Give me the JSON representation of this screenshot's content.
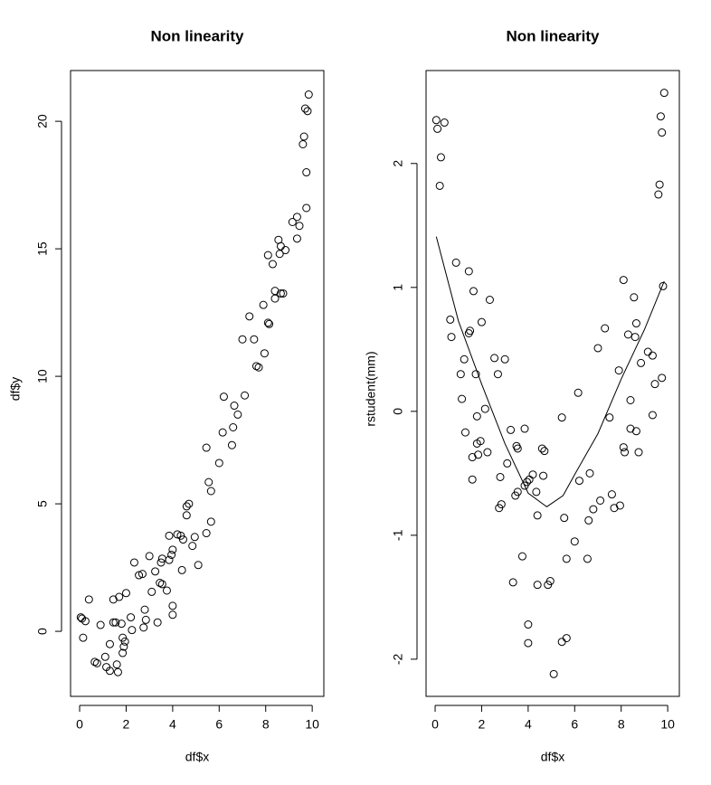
{
  "chart_data": [
    {
      "type": "scatter",
      "title": "Non linearity",
      "x_label": "df$x",
      "y_label": "df$y",
      "xlim": [
        -0.39,
        10.5
      ],
      "ylim": [
        -2.55,
        21.99
      ],
      "xticks": [
        0,
        2,
        4,
        6,
        8,
        10
      ],
      "yticks": [
        0,
        5,
        10,
        15,
        20
      ],
      "x": [
        0.05,
        0.1,
        0.15,
        0.25,
        0.4,
        0.65,
        0.75,
        0.9,
        1.1,
        1.15,
        1.3,
        1.3,
        1.45,
        1.45,
        1.55,
        1.6,
        1.65,
        1.7,
        1.8,
        1.85,
        1.85,
        1.9,
        1.95,
        2.0,
        2.2,
        2.25,
        2.35,
        2.55,
        2.7,
        2.75,
        2.8,
        2.85,
        3.0,
        3.1,
        3.25,
        3.35,
        3.45,
        3.5,
        3.55,
        3.55,
        3.75,
        3.85,
        3.85,
        3.95,
        4.0,
        4.0,
        4.0,
        4.2,
        4.35,
        4.4,
        4.45,
        4.6,
        4.6,
        4.7,
        4.85,
        4.95,
        5.1,
        5.45,
        5.45,
        5.55,
        5.65,
        5.65,
        6.0,
        6.15,
        6.2,
        6.55,
        6.6,
        6.65,
        6.8,
        7.0,
        7.1,
        7.3,
        7.5,
        7.6,
        7.7,
        7.9,
        7.95,
        8.1,
        8.15,
        8.1,
        8.3,
        8.4,
        8.4,
        8.55,
        8.6,
        8.65,
        8.65,
        8.75,
        8.85,
        9.15,
        9.35,
        9.35,
        9.45,
        9.6,
        9.65,
        9.7,
        9.75,
        9.75,
        9.8,
        9.85
      ],
      "values": [
        0.55,
        0.5,
        -0.25,
        0.4,
        1.25,
        -1.2,
        -1.25,
        0.25,
        -1.0,
        -1.4,
        -0.5,
        -1.55,
        0.35,
        1.25,
        0.35,
        -1.3,
        -1.6,
        1.35,
        0.3,
        -0.25,
        -0.85,
        -0.6,
        -0.4,
        1.5,
        0.55,
        0.05,
        2.7,
        2.2,
        2.25,
        0.15,
        0.85,
        0.45,
        2.95,
        1.55,
        2.35,
        0.35,
        1.9,
        2.7,
        2.85,
        1.85,
        1.6,
        2.8,
        3.75,
        3.0,
        3.2,
        0.65,
        1.0,
        3.8,
        3.75,
        2.4,
        3.6,
        4.55,
        4.9,
        5.0,
        3.35,
        3.7,
        2.6,
        3.85,
        7.2,
        5.85,
        5.5,
        4.3,
        6.6,
        7.8,
        9.2,
        7.3,
        8.0,
        8.85,
        8.5,
        11.45,
        9.25,
        12.35,
        11.45,
        10.4,
        10.35,
        12.8,
        10.9,
        12.1,
        12.05,
        14.75,
        14.4,
        13.35,
        13.05,
        15.35,
        14.8,
        15.1,
        13.25,
        13.25,
        14.95,
        16.05,
        16.25,
        15.4,
        15.9,
        19.1,
        19.4,
        20.5,
        18.0,
        16.6,
        20.4,
        21.05
      ]
    },
    {
      "type": "scatter",
      "title": "Non linearity",
      "x_label": "df$x",
      "y_label": "rstudent(mm)",
      "xlim": [
        -0.39,
        10.5
      ],
      "ylim": [
        -2.3,
        2.75
      ],
      "xticks": [
        0,
        2,
        4,
        6,
        8,
        10
      ],
      "yticks": [
        -2,
        -1,
        0,
        1,
        2
      ],
      "x": [
        0.05,
        0.1,
        0.2,
        0.25,
        0.4,
        0.65,
        0.7,
        0.9,
        1.1,
        1.15,
        1.25,
        1.3,
        1.45,
        1.45,
        1.5,
        1.6,
        1.6,
        1.65,
        1.75,
        1.8,
        1.8,
        1.85,
        1.95,
        2.0,
        2.15,
        2.25,
        2.35,
        2.55,
        2.7,
        2.75,
        2.8,
        2.85,
        3.0,
        3.1,
        3.25,
        3.35,
        3.45,
        3.5,
        3.55,
        3.55,
        3.75,
        3.85,
        3.85,
        3.95,
        4.0,
        4.0,
        4.05,
        4.2,
        4.35,
        4.4,
        4.4,
        4.6,
        4.65,
        4.7,
        4.85,
        4.95,
        5.1,
        5.45,
        5.45,
        5.55,
        5.65,
        5.65,
        6.0,
        6.15,
        6.2,
        6.55,
        6.6,
        6.65,
        6.8,
        7.0,
        7.1,
        7.3,
        7.5,
        7.6,
        7.7,
        7.9,
        7.95,
        8.1,
        8.15,
        8.1,
        8.3,
        8.4,
        8.4,
        8.55,
        8.6,
        8.65,
        8.65,
        8.75,
        8.85,
        9.15,
        9.35,
        9.35,
        9.45,
        9.6,
        9.65,
        9.7,
        9.75,
        9.75,
        9.8,
        9.85
      ],
      "values": [
        2.35,
        2.28,
        1.82,
        2.05,
        2.33,
        0.74,
        0.6,
        1.2,
        0.3,
        0.1,
        0.42,
        -0.17,
        1.13,
        0.63,
        0.65,
        -0.37,
        -0.55,
        0.97,
        0.3,
        -0.04,
        -0.26,
        -0.35,
        -0.24,
        0.72,
        0.02,
        -0.33,
        0.9,
        0.43,
        0.3,
        -0.78,
        -0.53,
        -0.75,
        0.42,
        -0.42,
        -0.15,
        -1.38,
        -0.68,
        -0.28,
        -0.65,
        -0.3,
        -1.17,
        -0.6,
        -0.14,
        -0.57,
        -1.72,
        -1.87,
        -0.55,
        -0.51,
        -0.65,
        -1.4,
        -0.84,
        -0.3,
        -0.52,
        -0.32,
        -1.4,
        -1.37,
        -2.12,
        -1.86,
        -0.05,
        -0.86,
        -1.83,
        -1.19,
        -1.05,
        0.15,
        -0.56,
        -1.19,
        -0.88,
        -0.5,
        -0.79,
        0.51,
        -0.72,
        0.67,
        -0.05,
        -0.67,
        -0.78,
        0.33,
        -0.76,
        -0.29,
        -0.33,
        1.06,
        0.62,
        0.09,
        -0.14,
        0.92,
        0.6,
        0.71,
        -0.16,
        -0.33,
        0.39,
        0.48,
        0.45,
        -0.03,
        0.22,
        1.75,
        1.83,
        2.38,
        2.25,
        0.27,
        1.01,
        2.57
      ],
      "fit": {
        "x": [
          0.05,
          1,
          2,
          3,
          4,
          4.8,
          5.5,
          6,
          7,
          8,
          9,
          9.85
        ],
        "values": [
          1.41,
          0.73,
          0.22,
          -0.26,
          -0.66,
          -0.77,
          -0.68,
          -0.51,
          -0.18,
          0.26,
          0.66,
          1.05
        ]
      }
    }
  ]
}
